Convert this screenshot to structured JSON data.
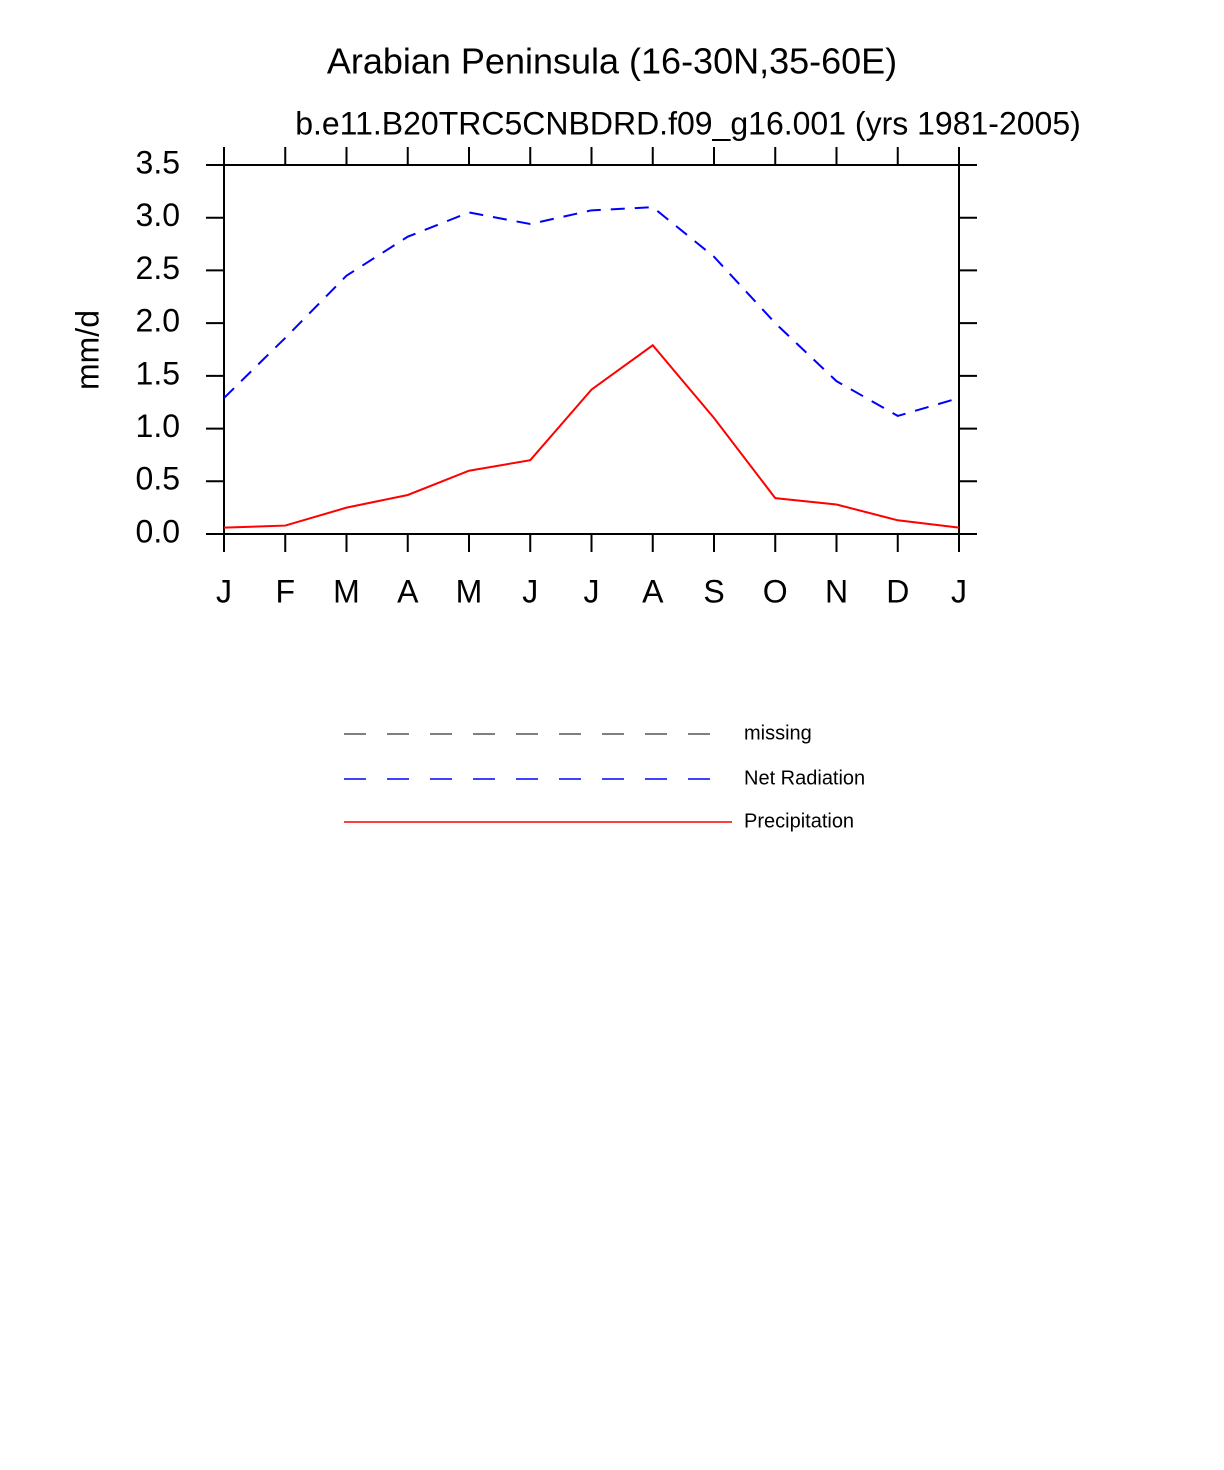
{
  "chart_data": {
    "type": "line",
    "title": "Arabian Peninsula (16-30N,35-60E)",
    "subtitle": "b.e11.B20TRC5CNBDRD.f09_g16.001 (yrs 1981-2005)",
    "y_label": "mm/d",
    "categories": [
      "J",
      "F",
      "M",
      "A",
      "M",
      "J",
      "J",
      "A",
      "S",
      "O",
      "N",
      "D",
      "J"
    ],
    "series": [
      {
        "name": "missing",
        "color": "#555555",
        "dashed": true,
        "values": [
          null,
          null,
          null,
          null,
          null,
          null,
          null,
          null,
          null,
          null,
          null,
          null,
          null
        ]
      },
      {
        "name": "Net Radiation",
        "color": "#0000ff",
        "dashed": true,
        "values": [
          1.29,
          1.86,
          2.45,
          2.82,
          3.05,
          2.94,
          3.07,
          3.1,
          2.63,
          2.0,
          1.45,
          1.12,
          1.29
        ]
      },
      {
        "name": "Precipitation",
        "color": "#ff0000",
        "dashed": false,
        "values": [
          0.06,
          0.08,
          0.25,
          0.37,
          0.6,
          0.7,
          1.37,
          1.79,
          1.1,
          0.34,
          0.28,
          0.13,
          0.06
        ]
      }
    ],
    "ylim": [
      0,
      3.5
    ],
    "yticks": [
      {
        "value": 0,
        "label": "0.0"
      },
      {
        "value": 0.5,
        "label": "0.5"
      },
      {
        "value": 1,
        "label": "1.0"
      },
      {
        "value": 1.5,
        "label": "1.5"
      },
      {
        "value": 2,
        "label": "2.0"
      },
      {
        "value": 2.5,
        "label": "2.5"
      },
      {
        "value": 3,
        "label": "3.0"
      },
      {
        "value": 3.5,
        "label": "3.5"
      }
    ],
    "legend": "bottom"
  }
}
